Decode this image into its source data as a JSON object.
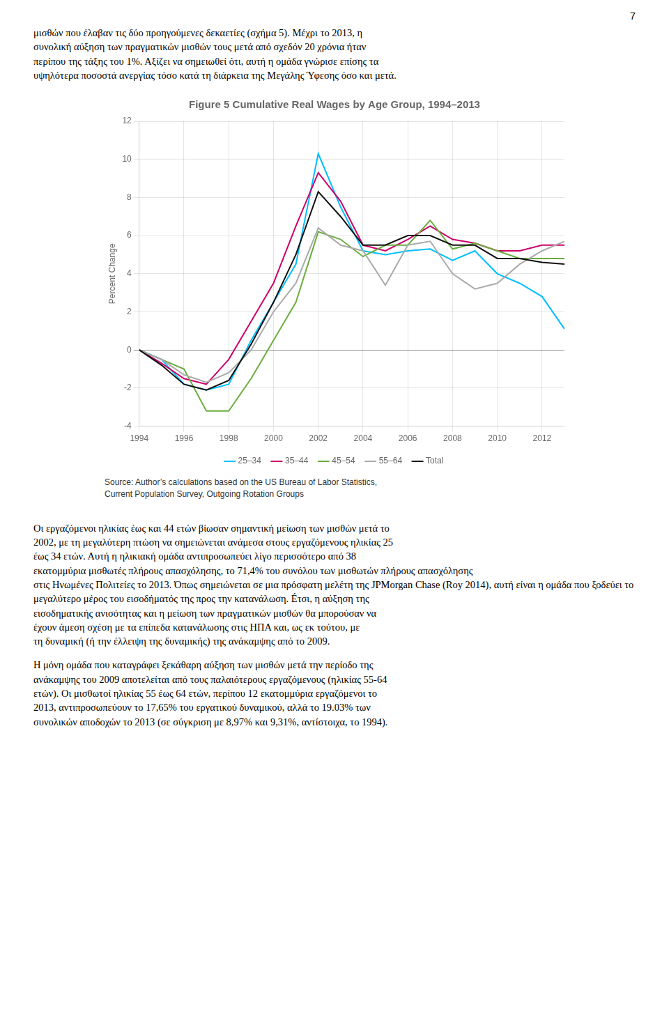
{
  "page_number": "7",
  "text_above": [
    [
      "μισθών που έλαβαν τις δύο προηγούμενες δεκαετίες (σχήμα 5). Μέχρι το 2013, η",
      "συνολική αύξηση των πραγματικών μισθών τους μετά από σχεδόν 20 χρόνια ήταν",
      "περίπου της τάξης του 1%. Αξίζει να σημειωθεί ότι, αυτή η ομάδα γνώρισε επίσης τα",
      "υψηλότερα ποσοστά ανεργίας τόσο κατά τη διάρκεια της Μεγάλης Ύφεσης όσο και μετά."
    ]
  ],
  "text_below": [
    [
      "Οι εργαζόμενοι ηλικίας έως και 44 ετών βίωσαν σημαντική μείωση των μισθών μετά το",
      "2002, με τη μεγαλύτερη πτώση να σημειώνεται ανάμεσα στους εργαζόμενους ηλικίας 25",
      "έως 34 ετών. Αυτή η ηλικιακή ομάδα αντιπροσωπεύει λίγο περισσότερο από 38",
      "εκατομμύρια μισθωτές πλήρους απασχόλησης, το 71,4% του συνόλου των μισθωτών πλήρους απασχόλησης",
      "στις Ηνωμένες Πολιτείες το 2013. Όπως σημειώνεται σε μια πρόσφατη μελέτη της JPMorgan Chase (Roy 2014), αυτή είναι η ομάδα που ξοδεύει το",
      "μεγαλύτερο μέρος του εισοδήματός της προς την κατανάλωση. Éτσι, η αύξηση της",
      "εισοδηματικής ανισότητας και η μείωση των πραγματικών μισθών θα μπορούσαν να",
      "έχουν άμεση σχέση με τα επίπεδα κατανάλωσης στις ΗΠΑ και, ως εκ τούτου, με",
      "τη δυναμική (ή την έλλειψη της δυναμικής) της ανάκαμψης από το 2009."
    ],
    [
      "Η μόνη ομάδα που καταγράφει ξεκάθαρη αύξηση των μισθών μετά την περίοδο της",
      "ανάκαμψης του 2009 αποτελείται από τους παλαιότερους εργαζόμενους (ηλικίας 55-64",
      "ετών). Οι μισθωτοί ηλικίας 55 έως 64 ετών, περίπου 12 εκατομμύρια εργαζόμενοι το",
      "2013, αντιπροσωπεύουν το 17,65% του εργατικού δυναμικού, αλλά το 19.03% των",
      "συνολικών αποδοχών το 2013 (σε σύγκριση με 8,97% και 9,31%, αντίστοιχα, το 1994)."
    ]
  ],
  "chart_data": {
    "type": "line",
    "title": "Figure 5 Cumulative Real Wages by Age Group, 1994–2013",
    "y_label": "Percent Change",
    "source": [
      "Source: Author’s calculations based on the US Bureau of Labor Statistics,",
      "Current Population Survey, Outgoing Rotation Groups"
    ],
    "x": [
      1994,
      1995,
      1996,
      1997,
      1998,
      1999,
      2000,
      2001,
      2002,
      2003,
      2004,
      2005,
      2006,
      2007,
      2008,
      2009,
      2010,
      2011,
      2012,
      2013
    ],
    "series": [
      {
        "name": "25–34",
        "color": "#00BFFF",
        "values": [
          0,
          -0.5,
          -1.8,
          -2.1,
          -1.8,
          0.5,
          2.5,
          4.5,
          10.3,
          7.5,
          5.2,
          5.0,
          5.2,
          5.3,
          4.7,
          5.2,
          4.0,
          3.5,
          2.8,
          1.1
        ]
      },
      {
        "name": "35–44",
        "color": "#CC006B",
        "values": [
          0,
          -0.7,
          -1.5,
          -1.8,
          -0.5,
          1.5,
          3.5,
          6.5,
          9.3,
          7.8,
          5.5,
          5.2,
          5.8,
          6.5,
          5.8,
          5.6,
          5.2,
          5.2,
          5.5,
          5.5
        ]
      },
      {
        "name": "45–54",
        "color": "#6AAD3E",
        "values": [
          0,
          -0.5,
          -1.0,
          -3.2,
          -3.2,
          -1.5,
          0.5,
          2.5,
          6.2,
          5.8,
          4.9,
          5.5,
          5.5,
          6.8,
          5.3,
          5.6,
          5.2,
          4.8,
          4.8,
          4.8
        ]
      },
      {
        "name": "55–64",
        "color": "#AAAAAA",
        "values": [
          0,
          -0.5,
          -1.3,
          -1.7,
          -1.2,
          0.0,
          2.0,
          3.5,
          6.4,
          5.5,
          5.2,
          3.4,
          5.5,
          5.7,
          4.0,
          3.2,
          3.5,
          4.5,
          5.2,
          5.7
        ]
      },
      {
        "name": "Total",
        "color": "#111111",
        "values": [
          0,
          -0.8,
          -1.8,
          -2.1,
          -1.6,
          0.3,
          2.5,
          5.0,
          8.3,
          7.0,
          5.5,
          5.5,
          6.0,
          6.0,
          5.5,
          5.5,
          4.8,
          4.8,
          4.6,
          4.5
        ]
      }
    ],
    "xlim": [
      1994,
      2013
    ],
    "xticks": [
      1994,
      1996,
      1998,
      2000,
      2002,
      2004,
      2006,
      2008,
      2010,
      2012
    ],
    "ylim": [
      -4,
      12
    ],
    "yticks": [
      -4,
      -2,
      0,
      2,
      4,
      6,
      8,
      10,
      12
    ],
    "grid": true,
    "legend": "bottom"
  }
}
